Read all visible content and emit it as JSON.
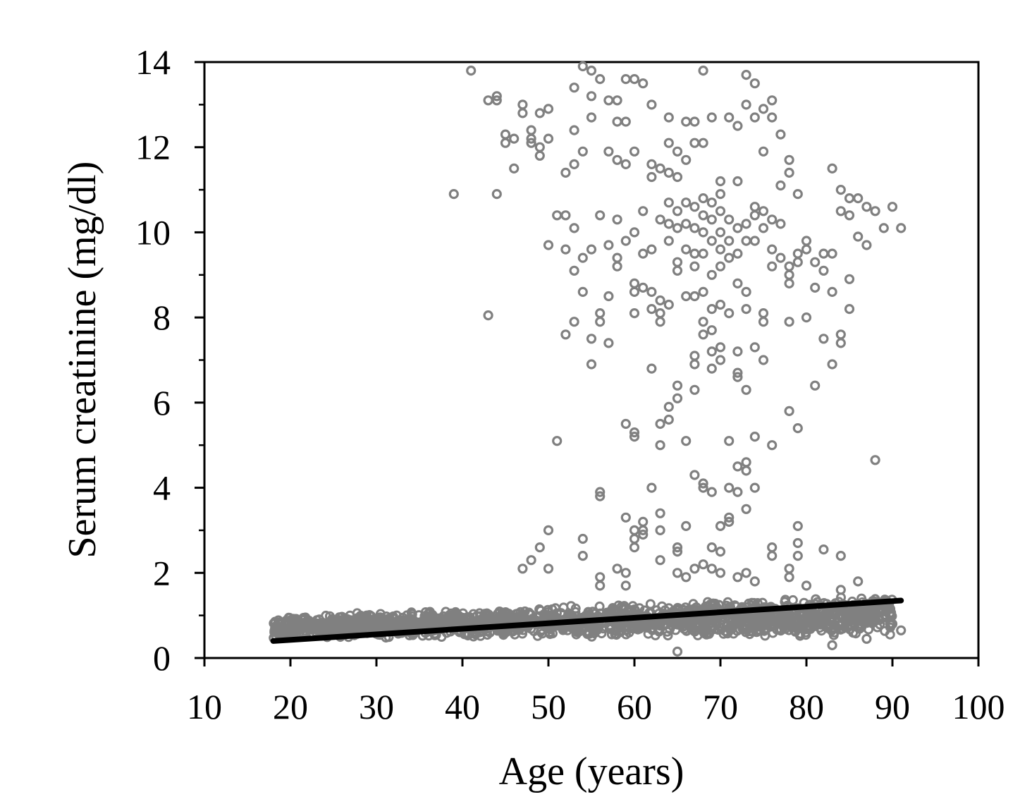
{
  "chart_data": {
    "type": "scatter",
    "xlabel": "Age (years)",
    "ylabel": "Serum creatinine (mg/dl)",
    "xlim": [
      10,
      100
    ],
    "ylim": [
      0,
      14
    ],
    "x_ticks": [
      "10",
      "20",
      "30",
      "40",
      "50",
      "60",
      "70",
      "80",
      "90",
      "100"
    ],
    "y_ticks": [
      "0",
      "2",
      "4",
      "6",
      "8",
      "10",
      "12",
      "14"
    ],
    "grid": false,
    "legend": "none",
    "colors": {
      "points": "#808080",
      "trend": "#000000",
      "axis": "#000000"
    },
    "trend_line": {
      "x": [
        18,
        91
      ],
      "y": [
        0.4,
        1.35
      ]
    },
    "dense_band": {
      "x_range": [
        18,
        90
      ],
      "y_low_at_start": 0.45,
      "y_high_at_start": 1.0,
      "y_low_at_end": 0.5,
      "y_high_at_end": 1.5
    },
    "points": [
      [
        41,
        13.8
      ],
      [
        43,
        13.1
      ],
      [
        44,
        13.2
      ],
      [
        44,
        13.1
      ],
      [
        47,
        13.0
      ],
      [
        47,
        12.8
      ],
      [
        49,
        12.8
      ],
      [
        50,
        12.9
      ],
      [
        45,
        12.3
      ],
      [
        45,
        12.1
      ],
      [
        46,
        12.2
      ],
      [
        48,
        12.4
      ],
      [
        48,
        12.2
      ],
      [
        48,
        12.1
      ],
      [
        49,
        12.0
      ],
      [
        49,
        11.8
      ],
      [
        50,
        12.2
      ],
      [
        46,
        11.5
      ],
      [
        39,
        10.9
      ],
      [
        44,
        10.9
      ],
      [
        43,
        8.05
      ],
      [
        52,
        11.4
      ],
      [
        53,
        11.6
      ],
      [
        53,
        12.4
      ],
      [
        54,
        11.9
      ],
      [
        55,
        12.7
      ],
      [
        53,
        13.4
      ],
      [
        54,
        13.9
      ],
      [
        55,
        13.8
      ],
      [
        55,
        13.2
      ],
      [
        56,
        13.6
      ],
      [
        57,
        13.1
      ],
      [
        58,
        13.1
      ],
      [
        57,
        11.9
      ],
      [
        58,
        11.7
      ],
      [
        59,
        11.6
      ],
      [
        58,
        12.6
      ],
      [
        59,
        12.6
      ],
      [
        59,
        13.6
      ],
      [
        60,
        13.6
      ],
      [
        61,
        13.5
      ],
      [
        60,
        11.9
      ],
      [
        62,
        11.6
      ],
      [
        62,
        11.3
      ],
      [
        63,
        11.5
      ],
      [
        64,
        11.4
      ],
      [
        62,
        13.0
      ],
      [
        64,
        12.7
      ],
      [
        64,
        12.1
      ],
      [
        65,
        11.9
      ],
      [
        65,
        11.3
      ],
      [
        66,
        12.6
      ],
      [
        67,
        12.6
      ],
      [
        66,
        11.7
      ],
      [
        67,
        12.1
      ],
      [
        68,
        12.1
      ],
      [
        68,
        13.8
      ],
      [
        69,
        12.7
      ],
      [
        70,
        11.2
      ],
      [
        71,
        12.7
      ],
      [
        72,
        12.5
      ],
      [
        73,
        13.0
      ],
      [
        72,
        11.2
      ],
      [
        73,
        13.7
      ],
      [
        74,
        13.5
      ],
      [
        74,
        12.7
      ],
      [
        75,
        12.9
      ],
      [
        75,
        11.9
      ],
      [
        76,
        13.1
      ],
      [
        76,
        12.7
      ],
      [
        77,
        12.3
      ],
      [
        77,
        11.1
      ],
      [
        78,
        11.7
      ],
      [
        78,
        11.4
      ],
      [
        79,
        10.9
      ],
      [
        77,
        10.2
      ],
      [
        83,
        11.5
      ],
      [
        84,
        11.0
      ],
      [
        85,
        10.8
      ],
      [
        86,
        10.8
      ],
      [
        87,
        10.6
      ],
      [
        88,
        10.5
      ],
      [
        90,
        10.6
      ],
      [
        89,
        10.1
      ],
      [
        91,
        10.1
      ],
      [
        84,
        10.5
      ],
      [
        85,
        10.4
      ],
      [
        86,
        9.9
      ],
      [
        87,
        9.7
      ],
      [
        51,
        10.4
      ],
      [
        52,
        10.4
      ],
      [
        53,
        10.1
      ],
      [
        50,
        9.7
      ],
      [
        52,
        9.6
      ],
      [
        53,
        9.1
      ],
      [
        54,
        9.4
      ],
      [
        55,
        9.6
      ],
      [
        56,
        10.4
      ],
      [
        57,
        9.7
      ],
      [
        58,
        10.3
      ],
      [
        58,
        9.4
      ],
      [
        58,
        9.2
      ],
      [
        59,
        9.8
      ],
      [
        60,
        10.0
      ],
      [
        61,
        10.5
      ],
      [
        61,
        9.5
      ],
      [
        62,
        9.6
      ],
      [
        63,
        10.3
      ],
      [
        64,
        10.7
      ],
      [
        64,
        10.2
      ],
      [
        64,
        9.8
      ],
      [
        65,
        10.5
      ],
      [
        65,
        10.1
      ],
      [
        65,
        9.3
      ],
      [
        65,
        9.1
      ],
      [
        66,
        10.7
      ],
      [
        66,
        10.2
      ],
      [
        66,
        9.6
      ],
      [
        67,
        10.6
      ],
      [
        67,
        10.1
      ],
      [
        67,
        9.5
      ],
      [
        67,
        9.2
      ],
      [
        68,
        10.8
      ],
      [
        68,
        10.4
      ],
      [
        68,
        10.0
      ],
      [
        68,
        9.5
      ],
      [
        69,
        10.7
      ],
      [
        69,
        10.3
      ],
      [
        69,
        9.8
      ],
      [
        69,
        9.0
      ],
      [
        70,
        10.9
      ],
      [
        70,
        10.5
      ],
      [
        70,
        10.0
      ],
      [
        70,
        9.6
      ],
      [
        70,
        9.2
      ],
      [
        71,
        10.3
      ],
      [
        71,
        9.8
      ],
      [
        71,
        9.4
      ],
      [
        72,
        10.1
      ],
      [
        72,
        9.5
      ],
      [
        73,
        10.2
      ],
      [
        73,
        9.8
      ],
      [
        74,
        10.6
      ],
      [
        74,
        10.4
      ],
      [
        74,
        9.8
      ],
      [
        75,
        10.5
      ],
      [
        75,
        10.1
      ],
      [
        76,
        10.3
      ],
      [
        76,
        9.6
      ],
      [
        76,
        9.2
      ],
      [
        77,
        9.4
      ],
      [
        78,
        9.2
      ],
      [
        79,
        9.5
      ],
      [
        79,
        9.3
      ],
      [
        80,
        9.6
      ],
      [
        80,
        9.8
      ],
      [
        81,
        9.3
      ],
      [
        82,
        9.5
      ],
      [
        83,
        9.5
      ],
      [
        82,
        9.1
      ],
      [
        78,
        9.0
      ],
      [
        78,
        8.8
      ],
      [
        81,
        8.7
      ],
      [
        83,
        8.6
      ],
      [
        85,
        8.9
      ],
      [
        85,
        8.2
      ],
      [
        80,
        8.0
      ],
      [
        78,
        7.9
      ],
      [
        75,
        8.1
      ],
      [
        75,
        7.9
      ],
      [
        54,
        8.6
      ],
      [
        56,
        8.1
      ],
      [
        56,
        7.9
      ],
      [
        57,
        8.5
      ],
      [
        53,
        7.9
      ],
      [
        52,
        7.6
      ],
      [
        55,
        7.5
      ],
      [
        57,
        7.4
      ],
      [
        55,
        6.9
      ],
      [
        60,
        8.8
      ],
      [
        60,
        8.6
      ],
      [
        61,
        8.7
      ],
      [
        62,
        8.6
      ],
      [
        63,
        8.4
      ],
      [
        64,
        8.3
      ],
      [
        60,
        8.1
      ],
      [
        62,
        8.2
      ],
      [
        63,
        8.1
      ],
      [
        63,
        7.9
      ],
      [
        66,
        8.5
      ],
      [
        67,
        8.5
      ],
      [
        68,
        8.6
      ],
      [
        69,
        8.2
      ],
      [
        70,
        8.3
      ],
      [
        68,
        7.9
      ],
      [
        68,
        7.6
      ],
      [
        69,
        7.7
      ],
      [
        70,
        7.3
      ],
      [
        71,
        8.1
      ],
      [
        72,
        8.8
      ],
      [
        73,
        8.6
      ],
      [
        73,
        8.2
      ],
      [
        72,
        7.2
      ],
      [
        74,
        7.3
      ],
      [
        75,
        7.0
      ],
      [
        67,
        7.1
      ],
      [
        69,
        7.2
      ],
      [
        67,
        6.9
      ],
      [
        69,
        6.8
      ],
      [
        70,
        7.0
      ],
      [
        62,
        6.8
      ],
      [
        72,
        6.6
      ],
      [
        72,
        6.7
      ],
      [
        73,
        6.3
      ],
      [
        67,
        6.3
      ],
      [
        65,
        6.4
      ],
      [
        65,
        6.1
      ],
      [
        64,
        5.9
      ],
      [
        63,
        5.5
      ],
      [
        64,
        5.6
      ],
      [
        59,
        5.5
      ],
      [
        60,
        5.3
      ],
      [
        60,
        5.2
      ],
      [
        51,
        5.1
      ],
      [
        63,
        5.0
      ],
      [
        66,
        5.1
      ],
      [
        71,
        5.1
      ],
      [
        74,
        5.2
      ],
      [
        76,
        5.0
      ],
      [
        78,
        5.8
      ],
      [
        79,
        5.4
      ],
      [
        81,
        6.4
      ],
      [
        82,
        7.5
      ],
      [
        83,
        6.9
      ],
      [
        84,
        7.6
      ],
      [
        84,
        7.4
      ],
      [
        88,
        4.65
      ],
      [
        67,
        4.3
      ],
      [
        68,
        4.1
      ],
      [
        68,
        4.0
      ],
      [
        69,
        3.9
      ],
      [
        71,
        4.0
      ],
      [
        72,
        3.9
      ],
      [
        72,
        4.5
      ],
      [
        73,
        4.6
      ],
      [
        73,
        4.4
      ],
      [
        74,
        4.0
      ],
      [
        73,
        3.5
      ],
      [
        56,
        3.9
      ],
      [
        56,
        3.8
      ],
      [
        62,
        4.0
      ],
      [
        63,
        3.4
      ],
      [
        59,
        3.3
      ],
      [
        60,
        3.0
      ],
      [
        61,
        3.2
      ],
      [
        61,
        3.0
      ],
      [
        63,
        3.0
      ],
      [
        66,
        3.1
      ],
      [
        70,
        3.1
      ],
      [
        71,
        3.3
      ],
      [
        71,
        3.2
      ],
      [
        79,
        3.1
      ],
      [
        50,
        3.0
      ],
      [
        49,
        2.6
      ],
      [
        48,
        2.3
      ],
      [
        47,
        2.1
      ],
      [
        50,
        2.1
      ],
      [
        54,
        2.8
      ],
      [
        54,
        2.4
      ],
      [
        58,
        2.1
      ],
      [
        59,
        2.0
      ],
      [
        60,
        2.6
      ],
      [
        60,
        2.8
      ],
      [
        61,
        2.9
      ],
      [
        63,
        2.3
      ],
      [
        65,
        2.6
      ],
      [
        65,
        2.5
      ],
      [
        69,
        2.6
      ],
      [
        70,
        2.5
      ],
      [
        76,
        2.6
      ],
      [
        76,
        2.4
      ],
      [
        79,
        2.7
      ],
      [
        79,
        2.4
      ],
      [
        82,
        2.55
      ],
      [
        84,
        2.4
      ],
      [
        86,
        1.8
      ],
      [
        84,
        1.6
      ],
      [
        56,
        1.9
      ],
      [
        56,
        1.7
      ],
      [
        59,
        1.7
      ],
      [
        65,
        2.0
      ],
      [
        66,
        1.9
      ],
      [
        67,
        2.1
      ],
      [
        68,
        2.2
      ],
      [
        69,
        2.1
      ],
      [
        70,
        2.0
      ],
      [
        72,
        1.9
      ],
      [
        73,
        2.0
      ],
      [
        74,
        1.8
      ],
      [
        78,
        2.1
      ],
      [
        78,
        1.9
      ],
      [
        80,
        1.7
      ],
      [
        65,
        0.15
      ],
      [
        83,
        0.3
      ],
      [
        87,
        0.45
      ],
      [
        91,
        0.65
      ],
      [
        90,
        0.8
      ]
    ]
  }
}
